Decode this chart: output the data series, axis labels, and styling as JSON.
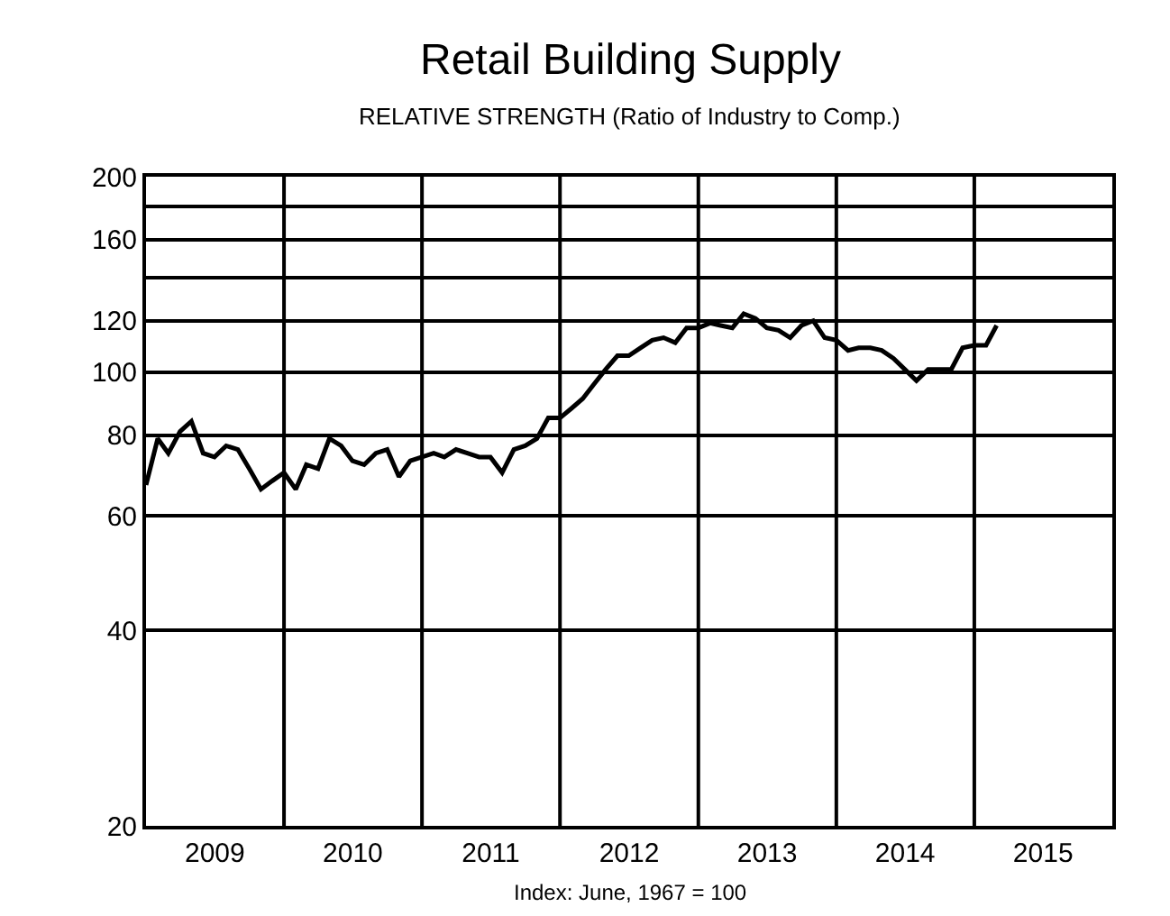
{
  "chart_data": {
    "type": "line",
    "title": "Retail Building Supply",
    "subtitle": "RELATIVE STRENGTH (Ratio of Industry to Comp.)",
    "annotations": [
      "Index: June, 1967 = 100"
    ],
    "x": [
      "2009-01",
      "2009-02",
      "2009-03",
      "2009-04",
      "2009-05",
      "2009-06",
      "2009-07",
      "2009-08",
      "2009-09",
      "2009-10",
      "2009-11",
      "2009-12",
      "2010-01",
      "2010-02",
      "2010-03",
      "2010-04",
      "2010-05",
      "2010-06",
      "2010-07",
      "2010-08",
      "2010-09",
      "2010-10",
      "2010-11",
      "2010-12",
      "2011-01",
      "2011-02",
      "2011-03",
      "2011-04",
      "2011-05",
      "2011-06",
      "2011-07",
      "2011-08",
      "2011-09",
      "2011-10",
      "2011-11",
      "2011-12",
      "2012-01",
      "2012-02",
      "2012-03",
      "2012-04",
      "2012-05",
      "2012-06",
      "2012-07",
      "2012-08",
      "2012-09",
      "2012-10",
      "2012-11",
      "2012-12",
      "2013-01",
      "2013-02",
      "2013-03",
      "2013-04",
      "2013-05",
      "2013-06",
      "2013-07",
      "2013-08",
      "2013-09",
      "2013-10",
      "2013-11",
      "2013-12",
      "2014-01",
      "2014-02",
      "2014-03",
      "2014-04",
      "2014-05",
      "2014-06",
      "2014-07",
      "2014-08",
      "2014-09",
      "2014-10",
      "2014-11",
      "2014-12",
      "2015-01",
      "2015-02",
      "2015-03"
    ],
    "series": [
      {
        "color": "#000000",
        "values": [
          67,
          79,
          75,
          81,
          84,
          75,
          74,
          77,
          76,
          71,
          66,
          68,
          70,
          66,
          72,
          71,
          79,
          77,
          73,
          72,
          75,
          76,
          69,
          73,
          74,
          75,
          74,
          76,
          75,
          74,
          74,
          70,
          76,
          77,
          79,
          85,
          85,
          88,
          91,
          96,
          101,
          106,
          106,
          109,
          112,
          113,
          111,
          117,
          117,
          119,
          118,
          117,
          123,
          121,
          117,
          116,
          113,
          118,
          120,
          113,
          112,
          108,
          109,
          109,
          108,
          105,
          101,
          97,
          101,
          101,
          101,
          109,
          110,
          110,
          118
        ]
      }
    ],
    "log": true,
    "grid": true,
    "marker": "none",
    "line_style": "solid",
    "ylim": [
      20,
      200
    ],
    "yticks": [
      20,
      40,
      60,
      80,
      100,
      120,
      {
        "value": 140,
        "label": null
      },
      160,
      {
        "value": 180,
        "label": null
      },
      200
    ],
    "xlim": [
      "2009-01-01",
      "2016-01-01"
    ],
    "xticks": [
      {
        "value": "2009-07-02",
        "label": "2009"
      },
      {
        "value": "2010-01-01",
        "label": null
      },
      {
        "value": "2010-07-02",
        "label": "2010"
      },
      {
        "value": "2011-01-01",
        "label": null
      },
      {
        "value": "2011-07-02",
        "label": "2011"
      },
      {
        "value": "2012-01-01",
        "label": null
      },
      {
        "value": "2012-07-02",
        "label": "2012"
      },
      {
        "value": "2013-01-01",
        "label": null
      },
      {
        "value": "2013-07-02",
        "label": "2013"
      },
      {
        "value": "2014-01-01",
        "label": null
      },
      {
        "value": "2014-07-02",
        "label": "2014"
      },
      {
        "value": "2015-01-01",
        "label": null
      },
      {
        "value": "2015-07-02",
        "label": "2015"
      }
    ]
  }
}
